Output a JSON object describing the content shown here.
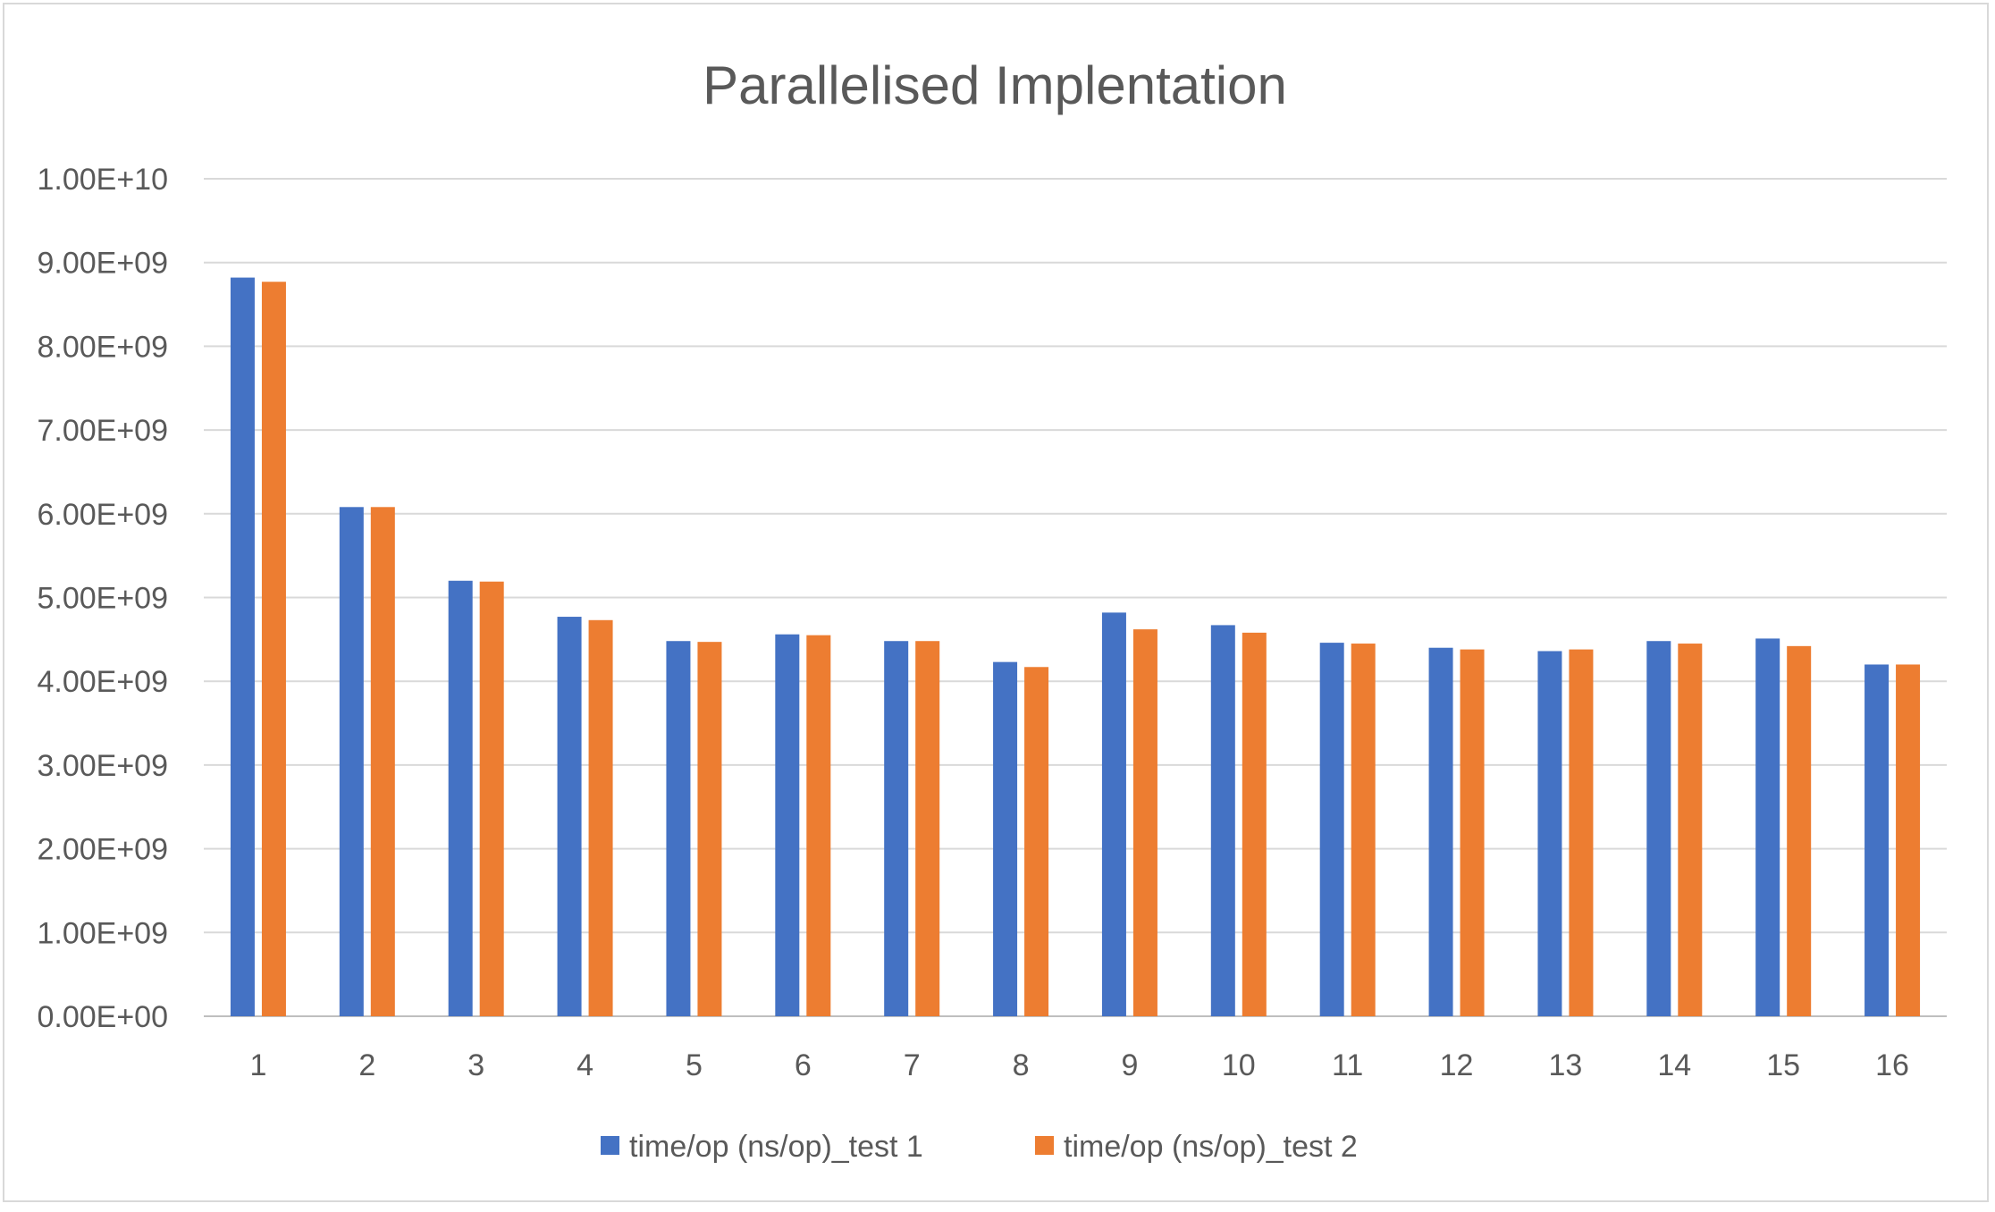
{
  "chart_data": {
    "type": "bar",
    "title": "Parallelised Implentation",
    "xlabel": "",
    "ylabel": "",
    "categories": [
      "1",
      "2",
      "3",
      "4",
      "5",
      "6",
      "7",
      "8",
      "9",
      "10",
      "11",
      "12",
      "13",
      "14",
      "15",
      "16"
    ],
    "series": [
      {
        "name": "time/op (ns/op)_test 1",
        "color": "#4472C4",
        "values": [
          8820000000.0,
          6080000000.0,
          5200000000.0,
          4770000000.0,
          4480000000.0,
          4560000000.0,
          4480000000.0,
          4230000000.0,
          4820000000.0,
          4670000000.0,
          4460000000.0,
          4400000000.0,
          4360000000.0,
          4480000000.0,
          4510000000.0,
          4200000000.0
        ]
      },
      {
        "name": "time/op (ns/op)_test 2",
        "color": "#ED7D31",
        "values": [
          8770000000.0,
          6080000000.0,
          5190000000.0,
          4730000000.0,
          4470000000.0,
          4550000000.0,
          4480000000.0,
          4170000000.0,
          4620000000.0,
          4580000000.0,
          4450000000.0,
          4380000000.0,
          4380000000.0,
          4450000000.0,
          4420000000.0,
          4200000000.0
        ]
      }
    ],
    "ylim": [
      0,
      10000000000
    ],
    "yticks": [
      "0.00E+00",
      "1.00E+09",
      "2.00E+09",
      "3.00E+09",
      "4.00E+09",
      "5.00E+09",
      "6.00E+09",
      "7.00E+09",
      "8.00E+09",
      "9.00E+09",
      "1.00E+10"
    ],
    "grid": true,
    "legend_position": "bottom"
  }
}
